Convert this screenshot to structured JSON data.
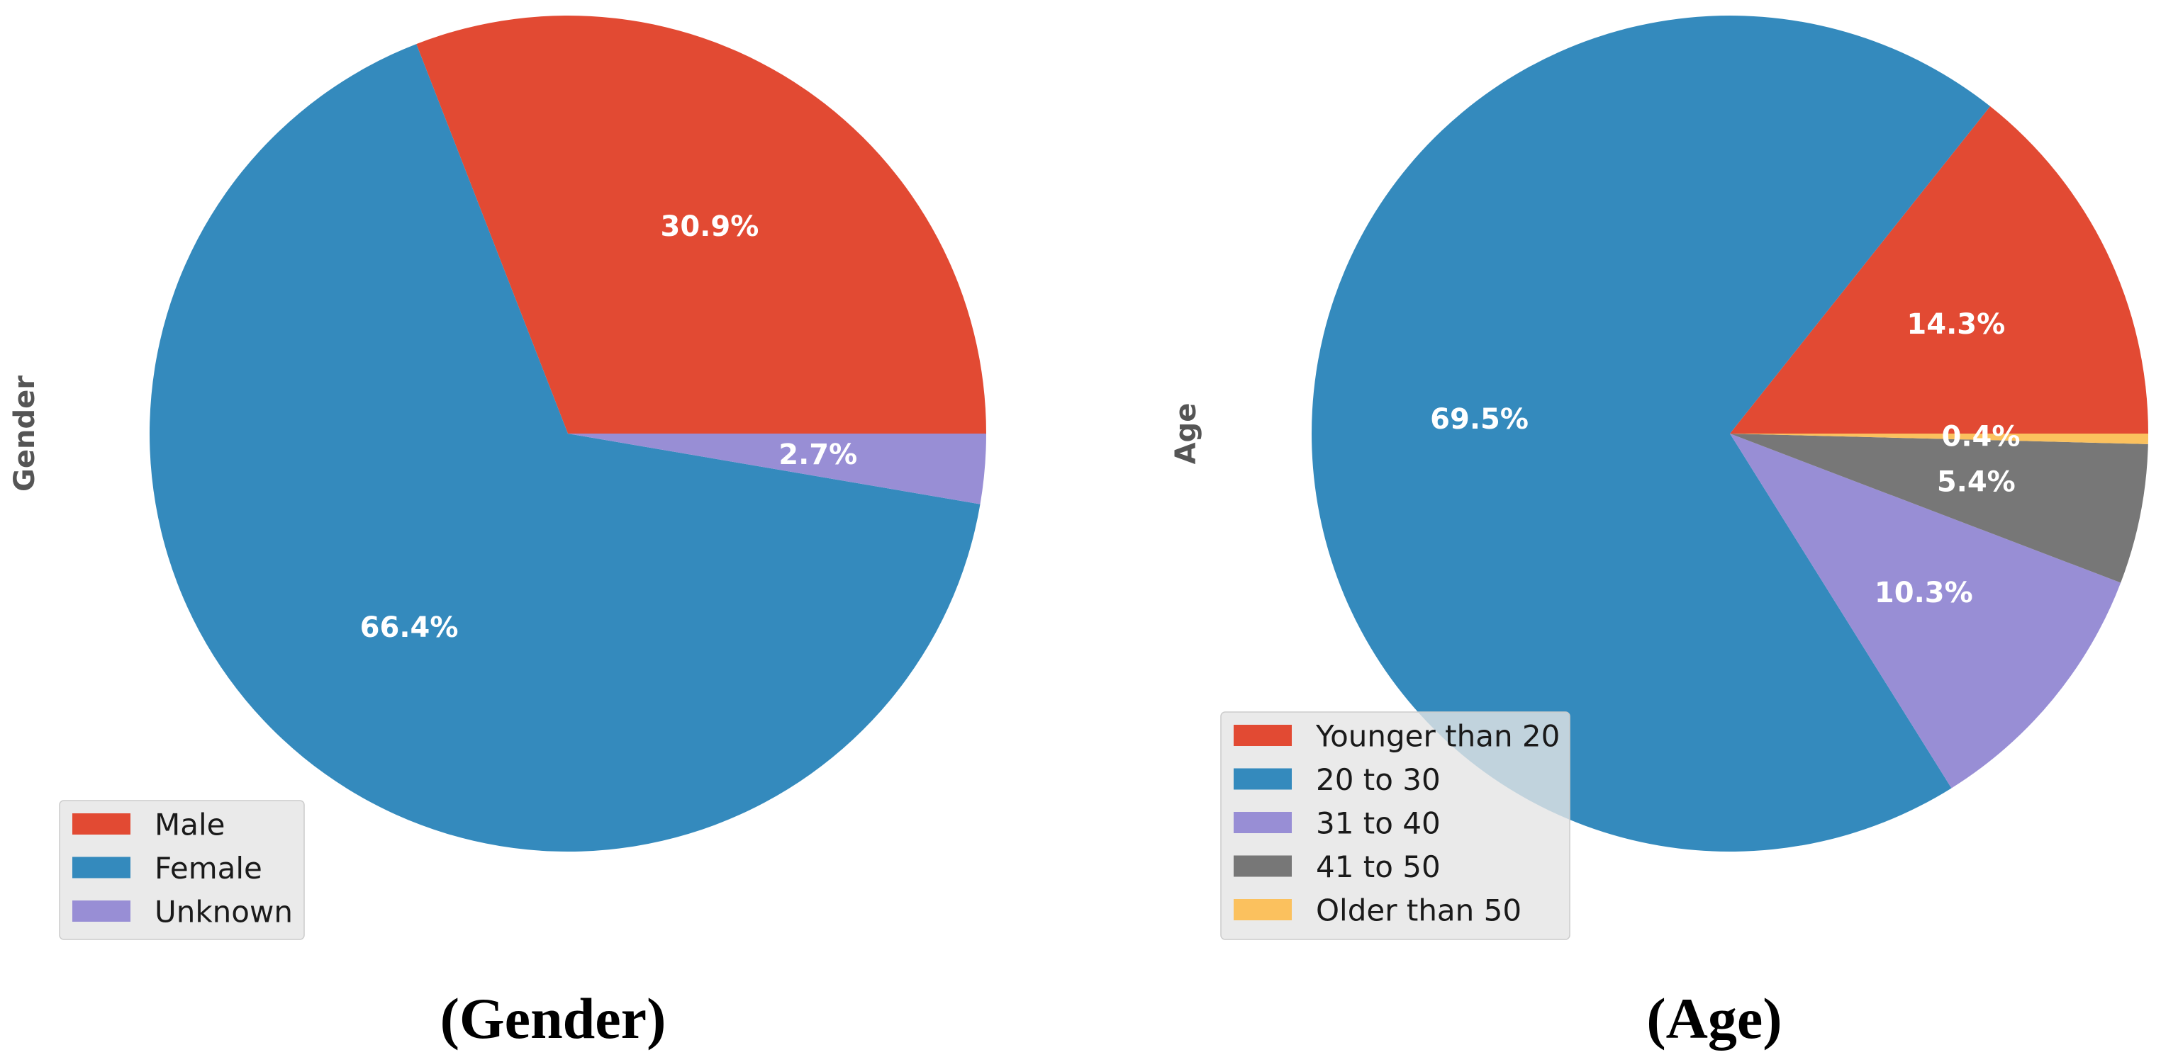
{
  "chart_data": [
    {
      "type": "pie",
      "ylabel": "Gender",
      "caption": "(Gender)",
      "start_angle": 0,
      "counterclock": true,
      "legend_position": "lower-left",
      "slices": [
        {
          "label": "Male",
          "value": 30.9,
          "display": "30.9%",
          "color": "#E24A33"
        },
        {
          "label": "Female",
          "value": 66.4,
          "display": "66.4%",
          "color": "#348ABD"
        },
        {
          "label": "Unknown",
          "value": 2.7,
          "display": "2.7%",
          "color": "#988ED5"
        }
      ]
    },
    {
      "type": "pie",
      "ylabel": "Age",
      "caption": "(Age)",
      "start_angle": 0,
      "counterclock": true,
      "legend_position": "lower-left",
      "slices": [
        {
          "label": "Younger than 20",
          "value": 14.3,
          "display": "14.3%",
          "color": "#E24A33"
        },
        {
          "label": "20 to 30",
          "value": 69.5,
          "display": "69.5%",
          "color": "#348ABD"
        },
        {
          "label": "31 to 40",
          "value": 10.3,
          "display": "10.3%",
          "color": "#988ED5"
        },
        {
          "label": "41 to 50",
          "value": 5.4,
          "display": "5.4%",
          "color": "#777777"
        },
        {
          "label": "Older than 50",
          "value": 0.4,
          "display": "0.4%",
          "color": "#FBC15E"
        }
      ]
    }
  ]
}
